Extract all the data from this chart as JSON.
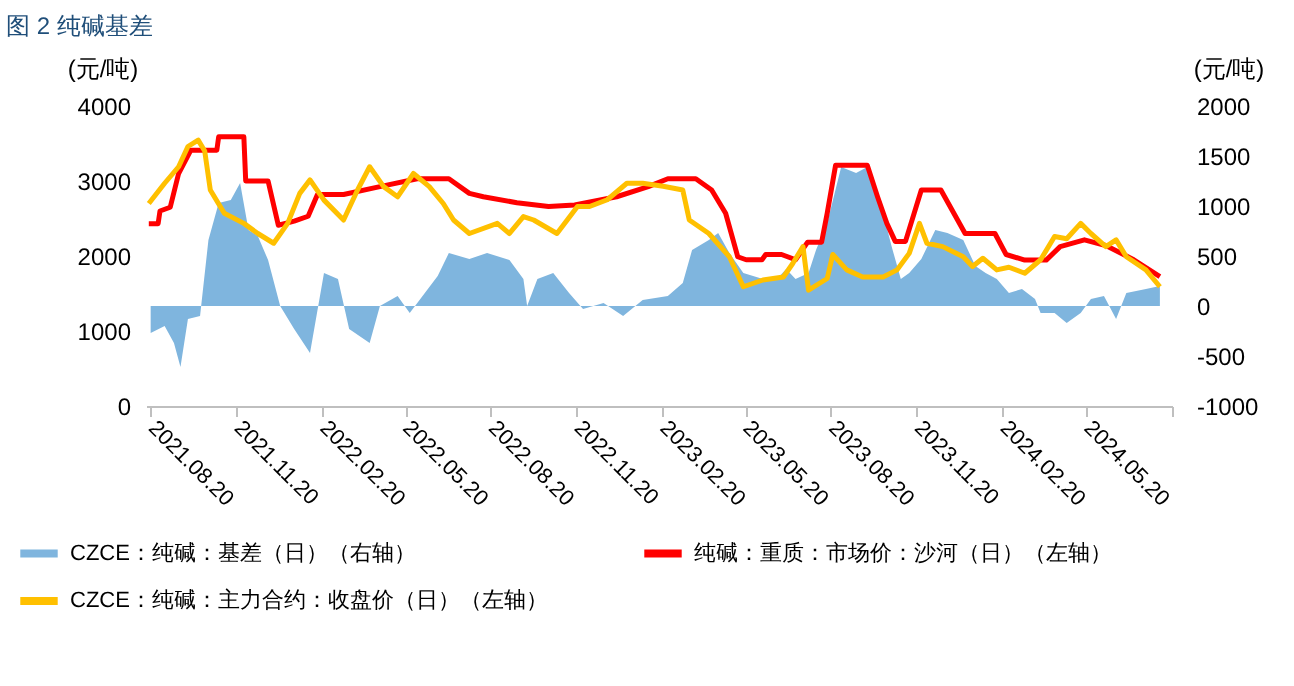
{
  "chart_data": {
    "type": "line",
    "title": "图 2 纯碱基差",
    "ylabel": "(元/吨)",
    "y2label": "(元/吨)",
    "xlim": [
      "2021-08-15",
      "2024-08-20"
    ],
    "xticks": [
      {
        "value": "2021-08-20",
        "label": "2021.08.20"
      },
      {
        "value": "2021-11-20",
        "label": "2021.11.20"
      },
      {
        "value": "2022-02-20",
        "label": "2022.02.20"
      },
      {
        "value": "2022-05-20",
        "label": "2022.05.20"
      },
      {
        "value": "2022-08-20",
        "label": "2022.08.20"
      },
      {
        "value": "2022-11-20",
        "label": "2022.11.20"
      },
      {
        "value": "2023-02-20",
        "label": "2023.02.20"
      },
      {
        "value": "2023-05-20",
        "label": "2023.05.20"
      },
      {
        "value": "2023-08-20",
        "label": "2023.08.20"
      },
      {
        "value": "2023-11-20",
        "label": "2023.11.20"
      },
      {
        "value": "2024-02-20",
        "label": "2024.02.20"
      },
      {
        "value": "2024-05-20",
        "label": "2024.05.20"
      },
      {
        "value": "2024-08-20",
        "label": null
      }
    ],
    "ylim": [
      0,
      4000
    ],
    "yticks": [
      0,
      1000,
      2000,
      3000,
      4000
    ],
    "y2lim": [
      -1000,
      2000
    ],
    "y2ticks": [
      -1000,
      -500,
      0,
      500,
      1000,
      1500,
      2000
    ],
    "legend": "bottom",
    "series": [
      {
        "name": "CZCE：纯碱：基差（日）（右轴）",
        "type": "area",
        "axis": "y2",
        "color": "#7fb5de",
        "x": [
          "2021-08-20",
          "2021-09-04",
          "2021-09-14",
          "2021-09-21",
          "2021-09-29",
          "2021-10-12",
          "2021-10-21",
          "2021-11-01",
          "2021-11-14",
          "2021-11-24",
          "2021-12-03",
          "2021-12-13",
          "2021-12-24",
          "2022-01-06",
          "2022-01-21",
          "2022-02-07",
          "2022-02-22",
          "2022-03-09",
          "2022-03-21",
          "2022-04-12",
          "2022-04-23",
          "2022-05-12",
          "2022-05-25",
          "2022-06-24",
          "2022-07-06",
          "2022-07-28",
          "2022-08-16",
          "2022-09-09",
          "2022-09-24",
          "2022-09-28",
          "2022-10-09",
          "2022-10-26",
          "2022-11-12",
          "2022-11-27",
          "2022-12-19",
          "2023-01-09",
          "2023-01-30",
          "2023-02-26",
          "2023-03-14",
          "2023-03-24",
          "2023-04-11",
          "2023-04-21",
          "2023-05-03",
          "2023-05-18",
          "2023-06-08",
          "2023-06-23",
          "2023-07-03",
          "2023-07-13",
          "2023-07-27",
          "2023-08-04",
          "2023-08-16",
          "2023-08-31",
          "2023-09-16",
          "2023-09-28",
          "2023-10-15",
          "2023-10-24",
          "2023-11-03",
          "2023-11-12",
          "2023-11-25",
          "2023-12-10",
          "2023-12-23",
          "2024-01-09",
          "2024-01-22",
          "2024-02-02",
          "2024-02-14",
          "2024-02-27",
          "2024-03-12",
          "2024-03-26",
          "2024-04-01",
          "2024-04-16",
          "2024-04-29",
          "2024-05-14",
          "2024-05-25",
          "2024-06-08",
          "2024-06-21",
          "2024-07-02",
          "2024-07-23",
          "2024-08-07"
        ],
        "values": [
          -270,
          -200,
          -370,
          -610,
          -130,
          -100,
          660,
          1030,
          1060,
          1230,
          760,
          700,
          460,
          0,
          -230,
          -470,
          330,
          270,
          -230,
          -370,
          0,
          100,
          -70,
          300,
          530,
          470,
          530,
          460,
          270,
          0,
          270,
          330,
          130,
          -30,
          30,
          -100,
          60,
          100,
          230,
          560,
          660,
          730,
          530,
          330,
          270,
          270,
          370,
          270,
          330,
          560,
          830,
          1390,
          1330,
          1390,
          930,
          600,
          270,
          330,
          470,
          760,
          730,
          660,
          400,
          330,
          270,
          130,
          170,
          70,
          -70,
          -70,
          -170,
          -70,
          70,
          100,
          -130,
          130,
          170,
          200
        ]
      },
      {
        "name": "纯碱：重质：市场价：沙河（日）（左轴）",
        "color": "#ff0000",
        "x": [
          "2021-08-18",
          "2021-08-28",
          "2021-08-30",
          "2021-09-10",
          "2021-09-19",
          "2021-10-02",
          "2021-10-30",
          "2021-11-01",
          "2021-11-28",
          "2021-11-30",
          "2021-12-24",
          "2022-01-04",
          "2022-01-21",
          "2022-02-05",
          "2022-02-15",
          "2022-03-15",
          "2022-04-23",
          "2022-06-02",
          "2022-07-06",
          "2022-07-28",
          "2022-08-12",
          "2022-09-17",
          "2022-10-21",
          "2022-11-18",
          "2023-01-02",
          "2023-02-05",
          "2023-02-26",
          "2023-03-28",
          "2023-04-14",
          "2023-04-29",
          "2023-05-12",
          "2023-05-21",
          "2023-06-07",
          "2023-06-11",
          "2023-06-28",
          "2023-07-13",
          "2023-07-26",
          "2023-08-10",
          "2023-08-16",
          "2023-08-25",
          "2023-09-28",
          "2023-10-09",
          "2023-10-19",
          "2023-10-28",
          "2023-11-08",
          "2023-11-25",
          "2023-12-16",
          "2024-01-11",
          "2024-02-12",
          "2024-02-24",
          "2024-03-15",
          "2024-04-07",
          "2024-04-22",
          "2024-05-18",
          "2024-06-10",
          "2024-07-10",
          "2024-08-07"
        ],
        "values": [
          2430,
          2430,
          2600,
          2650,
          3100,
          3410,
          3410,
          3590,
          3590,
          3000,
          3000,
          2410,
          2465,
          2530,
          2820,
          2820,
          2925,
          3030,
          3030,
          2835,
          2790,
          2710,
          2660,
          2680,
          2790,
          2925,
          3030,
          3030,
          2880,
          2570,
          1990,
          1950,
          1950,
          2020,
          2020,
          1950,
          2185,
          2185,
          2570,
          3210,
          3210,
          2790,
          2435,
          2195,
          2195,
          2880,
          2880,
          2300,
          2300,
          2020,
          1945,
          1945,
          2125,
          2215,
          2140,
          1950,
          1725
        ]
      },
      {
        "name": "CZCE：纯碱：主力合约：收盘价（日）（左轴）",
        "color": "#ffc000",
        "x": [
          "2021-08-18",
          "2021-09-04",
          "2021-09-19",
          "2021-09-29",
          "2021-10-10",
          "2021-10-17",
          "2021-10-23",
          "2021-11-07",
          "2021-11-28",
          "2021-12-13",
          "2021-12-30",
          "2022-01-14",
          "2022-01-27",
          "2022-02-07",
          "2022-02-22",
          "2022-03-15",
          "2022-03-30",
          "2022-04-12",
          "2022-04-27",
          "2022-05-12",
          "2022-05-29",
          "2022-06-15",
          "2022-06-30",
          "2022-07-11",
          "2022-07-28",
          "2022-08-27",
          "2022-09-09",
          "2022-09-24",
          "2022-10-05",
          "2022-10-30",
          "2022-11-21",
          "2022-12-04",
          "2022-12-23",
          "2023-01-13",
          "2023-01-30",
          "2023-02-21",
          "2023-03-14",
          "2023-03-21",
          "2023-04-11",
          "2023-05-03",
          "2023-05-18",
          "2023-06-08",
          "2023-06-30",
          "2023-07-10",
          "2023-07-21",
          "2023-07-27",
          "2023-08-16",
          "2023-08-22",
          "2023-09-06",
          "2023-09-23",
          "2023-10-15",
          "2023-10-30",
          "2023-11-12",
          "2023-11-23",
          "2023-12-01",
          "2023-12-18",
          "2024-01-09",
          "2024-01-19",
          "2024-01-30",
          "2024-02-14",
          "2024-02-27",
          "2024-03-15",
          "2024-04-01",
          "2024-04-16",
          "2024-04-29",
          "2024-05-14",
          "2024-05-25",
          "2024-06-10",
          "2024-06-21",
          "2024-07-02",
          "2024-07-23",
          "2024-08-07"
        ],
        "values": [
          2700,
          2970,
          3190,
          3460,
          3545,
          3400,
          2880,
          2570,
          2435,
          2300,
          2170,
          2435,
          2835,
          3015,
          2745,
          2480,
          2880,
          3190,
          2925,
          2790,
          3100,
          2925,
          2700,
          2480,
          2300,
          2435,
          2300,
          2525,
          2480,
          2300,
          2660,
          2660,
          2750,
          2970,
          2970,
          2930,
          2880,
          2480,
          2300,
          1990,
          1590,
          1680,
          1720,
          1900,
          2125,
          1545,
          1700,
          2020,
          1815,
          1720,
          1720,
          1815,
          2035,
          2435,
          2170,
          2125,
          1990,
          1860,
          1970,
          1815,
          1850,
          1770,
          1950,
          2260,
          2230,
          2435,
          2300,
          2125,
          2215,
          1990,
          1815,
          1590
        ]
      }
    ]
  }
}
